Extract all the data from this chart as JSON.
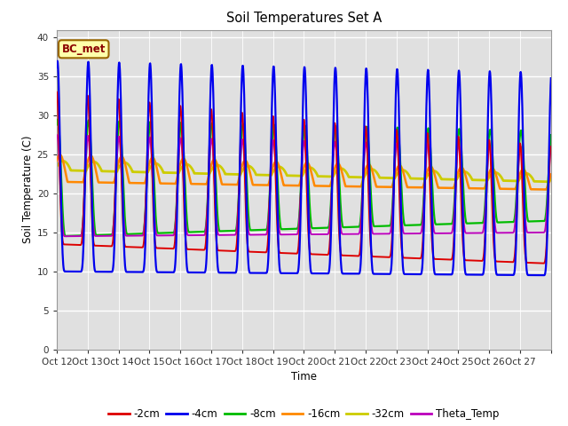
{
  "title": "Soil Temperatures Set A",
  "xlabel": "Time",
  "ylabel": "Soil Temperature (C)",
  "ylim": [
    0,
    41
  ],
  "yticks": [
    0,
    5,
    10,
    15,
    20,
    25,
    30,
    35,
    40
  ],
  "x_tick_labels": [
    "Oct 12",
    "Oct 13",
    "Oct 14",
    "Oct 15",
    "Oct 16",
    "Oct 17",
    "Oct 18",
    "Oct 19",
    "Oct 20",
    "Oct 21",
    "Oct 22",
    "Oct 23",
    "Oct 24",
    "Oct 25",
    "Oct 26",
    "Oct 27"
  ],
  "annotation_text": "BC_met",
  "bg_color": "#e0e0e0",
  "series": {
    "2cm": {
      "color": "#dd0000",
      "lw": 1.4
    },
    "4cm": {
      "color": "#0000ee",
      "lw": 1.6
    },
    "8cm": {
      "color": "#00bb00",
      "lw": 1.6
    },
    "16cm": {
      "color": "#ff8800",
      "lw": 1.8
    },
    "32cm": {
      "color": "#cccc00",
      "lw": 2.0
    },
    "Theta": {
      "color": "#bb00bb",
      "lw": 1.4
    }
  },
  "legend_labels": [
    "-2cm",
    "-4cm",
    "-8cm",
    "-16cm",
    "-32cm",
    "Theta_Temp"
  ],
  "n_days": 16,
  "pts_per_day": 96
}
